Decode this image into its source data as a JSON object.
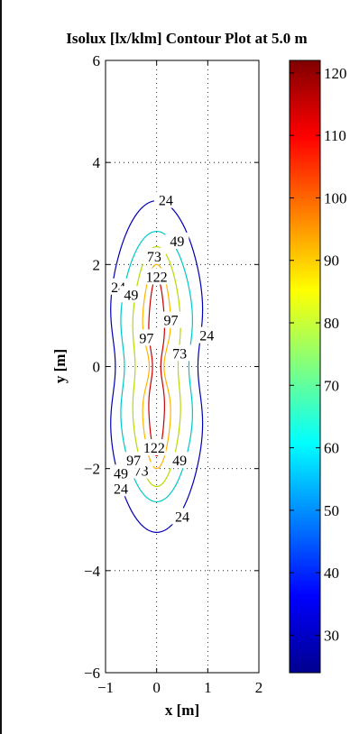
{
  "chart_data": {
    "type": "contour",
    "title": "Isolux [lx/klm] Contour Plot at 5.0 m",
    "xlabel": "x [m]",
    "ylabel": "y [m]",
    "xlim": [
      -1,
      2
    ],
    "ylim": [
      -6,
      6
    ],
    "xticks": [
      -1,
      0,
      1,
      2
    ],
    "yticks": [
      -6,
      -4,
      -2,
      0,
      2,
      4,
      6
    ],
    "grid": true,
    "colormap": "jet",
    "colorbar": {
      "range": [
        24,
        122
      ],
      "ticks": [
        30,
        40,
        50,
        60,
        70,
        80,
        90,
        100,
        110,
        120
      ],
      "placement": "right"
    },
    "contour_levels": [
      {
        "level": 24,
        "color": "#0000b4",
        "half_width": 1.0,
        "half_height": 3.25,
        "labels": [
          [
            0.18,
            3.25
          ],
          [
            0.98,
            0.6
          ],
          [
            0.5,
            -2.95
          ],
          [
            -0.7,
            -2.4
          ],
          [
            -0.75,
            1.55
          ]
        ]
      },
      {
        "level": 49,
        "color": "#00c8c8",
        "half_width": 0.78,
        "half_height": 2.65,
        "labels": [
          [
            0.4,
            2.45
          ],
          [
            -0.5,
            1.4
          ],
          [
            0.45,
            -1.85
          ],
          [
            -0.7,
            -2.1
          ]
        ]
      },
      {
        "level": 73,
        "color": "#b4dc00",
        "half_width": 0.52,
        "half_height": 2.35,
        "labels": [
          [
            -0.05,
            2.15
          ],
          [
            0.45,
            0.25
          ],
          [
            -0.3,
            -2.05
          ]
        ]
      },
      {
        "level": 97,
        "color": "#ffb400",
        "half_width": 0.32,
        "half_height": 2.0,
        "labels": [
          [
            0.28,
            0.9
          ],
          [
            -0.2,
            0.55
          ],
          [
            -0.45,
            -1.85
          ]
        ]
      },
      {
        "level": 122,
        "color": "#c80000",
        "half_width": 0.18,
        "half_height": 1.75,
        "labels": [
          [
            0.0,
            1.75
          ],
          [
            -0.05,
            -1.6
          ]
        ]
      }
    ]
  }
}
